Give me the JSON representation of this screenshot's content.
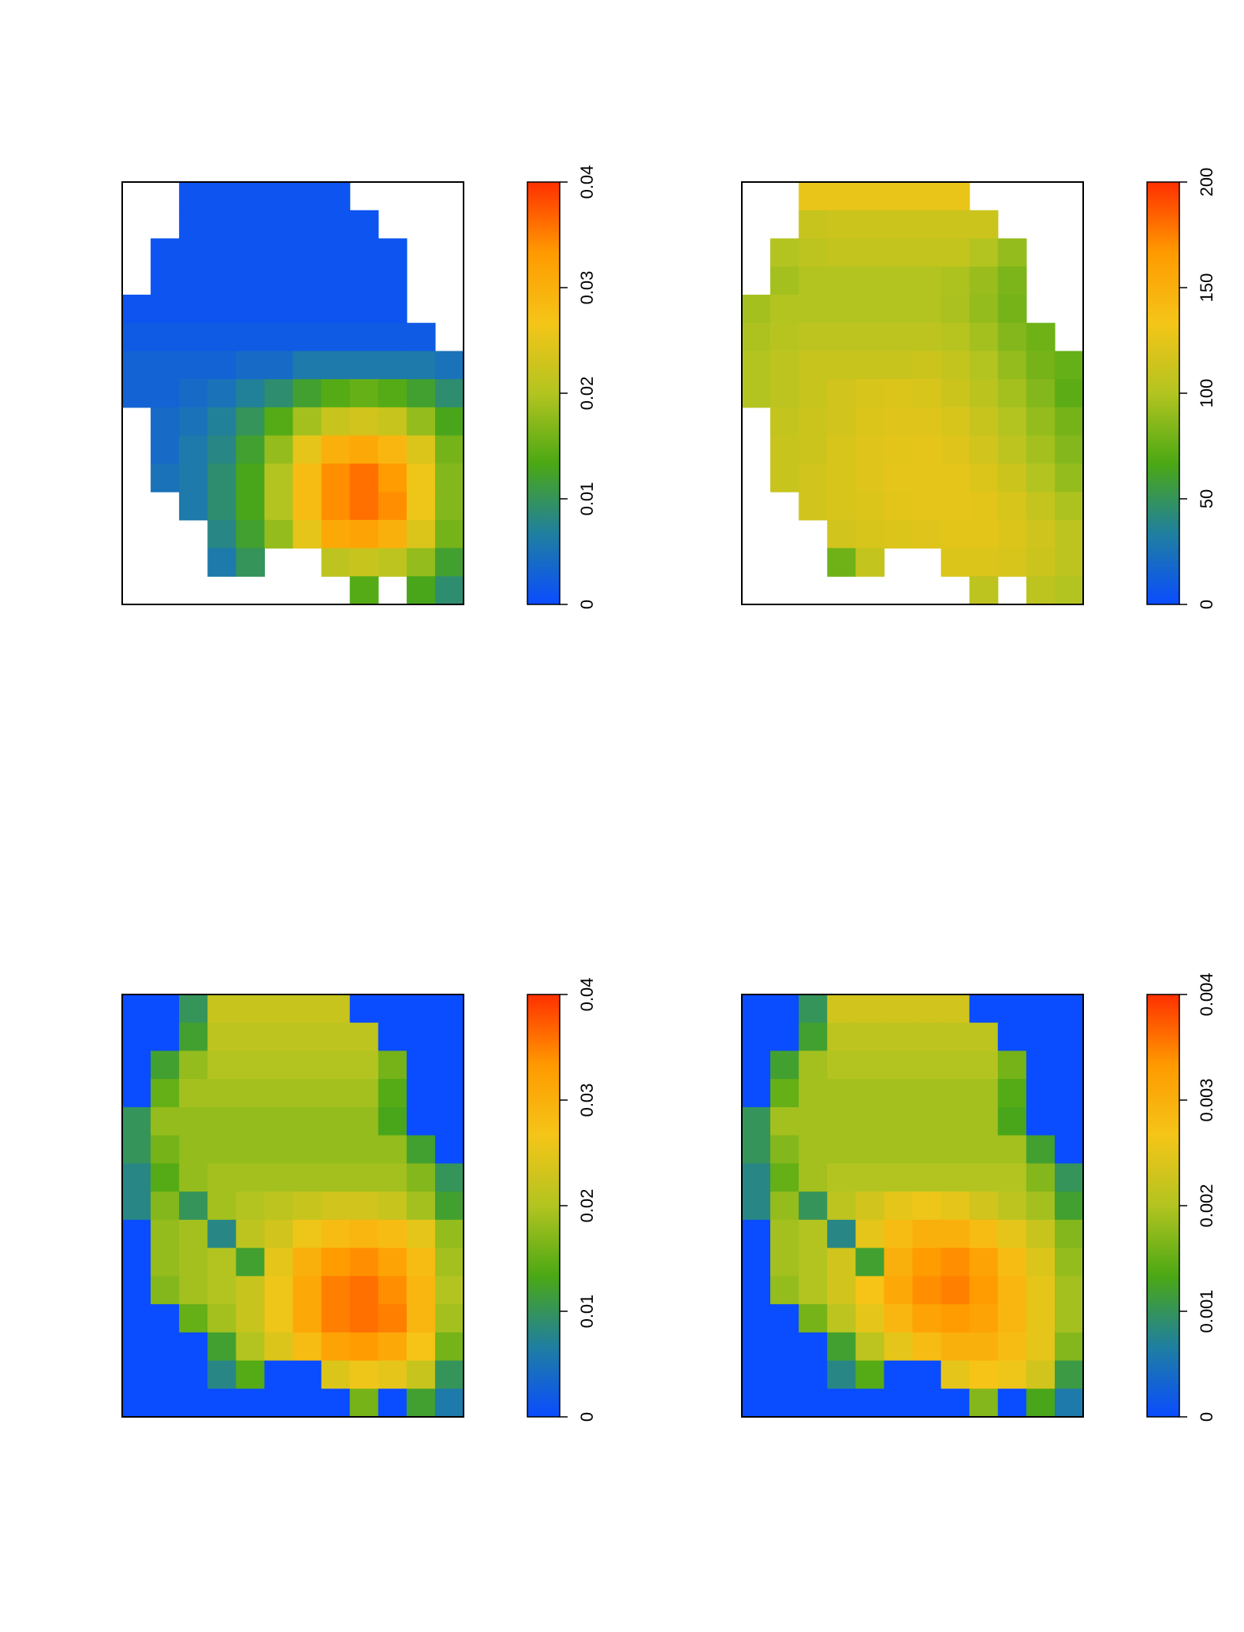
{
  "chart_data": [
    {
      "type": "heatmap",
      "zlim": [
        0,
        0.04
      ],
      "zticks": [
        0,
        0.01,
        0.02,
        0.03,
        0.04
      ],
      "colors": [
        "#0a4cff",
        "#1f7fa0",
        "#4ba814",
        "#b3c420",
        "#f5c518",
        "#ff9a00",
        "#ff3000"
      ],
      "z": [
        [
          null,
          null,
          0.001,
          0.001,
          0.001,
          0.001,
          0.001,
          0.001,
          null,
          null,
          null,
          null
        ],
        [
          null,
          null,
          0.001,
          0.001,
          0.001,
          0.001,
          0.001,
          0.001,
          0.001,
          null,
          null,
          null
        ],
        [
          null,
          0.001,
          0.001,
          0.001,
          0.001,
          0.001,
          0.001,
          0.001,
          0.001,
          0.001,
          null,
          null
        ],
        [
          null,
          0.001,
          0.001,
          0.001,
          0.001,
          0.001,
          0.001,
          0.001,
          0.001,
          0.001,
          null,
          null
        ],
        [
          0.001,
          0.001,
          0.001,
          0.001,
          0.001,
          0.001,
          0.001,
          0.001,
          0.001,
          0.001,
          null,
          null
        ],
        [
          0.002,
          0.002,
          0.002,
          0.002,
          0.002,
          0.002,
          0.002,
          0.002,
          0.002,
          0.002,
          0.002,
          null
        ],
        [
          0.003,
          0.003,
          0.003,
          0.003,
          0.004,
          0.004,
          0.006,
          0.006,
          0.006,
          0.006,
          0.006,
          0.005
        ],
        [
          0.003,
          0.003,
          0.004,
          0.005,
          0.007,
          0.009,
          0.012,
          0.014,
          0.015,
          0.014,
          0.012,
          0.009
        ],
        [
          null,
          0.004,
          0.005,
          0.007,
          0.01,
          0.014,
          0.019,
          0.022,
          0.023,
          0.022,
          0.018,
          0.013
        ],
        [
          null,
          0.004,
          0.006,
          0.008,
          0.012,
          0.018,
          0.025,
          0.03,
          0.031,
          0.029,
          0.024,
          0.016
        ],
        [
          null,
          0.005,
          0.006,
          0.009,
          0.013,
          0.02,
          0.028,
          0.034,
          0.036,
          0.033,
          0.026,
          0.017
        ],
        [
          null,
          null,
          0.006,
          0.009,
          0.013,
          0.02,
          0.028,
          0.034,
          0.036,
          0.034,
          0.026,
          0.017
        ],
        [
          null,
          null,
          null,
          0.008,
          0.012,
          0.018,
          0.025,
          0.031,
          0.032,
          0.03,
          0.024,
          0.016
        ],
        [
          null,
          null,
          null,
          0.006,
          0.01,
          null,
          null,
          0.021,
          0.022,
          0.021,
          0.018,
          0.012
        ],
        [
          null,
          null,
          null,
          null,
          null,
          null,
          null,
          null,
          0.014,
          null,
          0.013,
          0.009
        ]
      ]
    },
    {
      "type": "heatmap",
      "zlim": [
        0,
        200
      ],
      "zticks": [
        0,
        50,
        100,
        150,
        200
      ],
      "colors": [
        "#0a4cff",
        "#1f7fa0",
        "#4ba814",
        "#b3c420",
        "#f5c518",
        "#ff9a00",
        "#ff3000"
      ],
      "z": [
        [
          null,
          null,
          128,
          128,
          128,
          128,
          128,
          128,
          null,
          null,
          null,
          null
        ],
        [
          null,
          null,
          110,
          112,
          112,
          112,
          112,
          112,
          112,
          null,
          null,
          null
        ],
        [
          null,
          100,
          105,
          108,
          108,
          108,
          108,
          108,
          100,
          90,
          null,
          null
        ],
        [
          null,
          95,
          100,
          100,
          100,
          100,
          100,
          98,
          92,
          82,
          null,
          null
        ],
        [
          95,
          100,
          100,
          100,
          100,
          100,
          100,
          97,
          90,
          80,
          null,
          null
        ],
        [
          98,
          102,
          105,
          105,
          105,
          105,
          105,
          102,
          95,
          85,
          78,
          null
        ],
        [
          100,
          105,
          110,
          110,
          110,
          110,
          112,
          108,
          100,
          90,
          80,
          75
        ],
        [
          100,
          105,
          110,
          115,
          118,
          120,
          118,
          112,
          104,
          95,
          85,
          72
        ],
        [
          null,
          108,
          112,
          115,
          120,
          122,
          122,
          118,
          110,
          100,
          90,
          80
        ],
        [
          null,
          110,
          112,
          118,
          122,
          124,
          125,
          122,
          115,
          105,
          95,
          85
        ],
        [
          null,
          110,
          115,
          118,
          122,
          125,
          126,
          125,
          120,
          112,
          100,
          90
        ],
        [
          null,
          null,
          115,
          118,
          120,
          124,
          126,
          126,
          124,
          118,
          108,
          98
        ],
        [
          null,
          null,
          null,
          115,
          118,
          120,
          122,
          124,
          124,
          120,
          114,
          105
        ],
        [
          null,
          null,
          null,
          78,
          108,
          null,
          null,
          120,
          120,
          118,
          112,
          105
        ],
        [
          null,
          null,
          null,
          null,
          null,
          null,
          null,
          null,
          105,
          null,
          105,
          100
        ]
      ]
    },
    {
      "type": "heatmap",
      "zlim": [
        0,
        0.04
      ],
      "zticks": [
        0,
        0.01,
        0.02,
        0.03,
        0.04
      ],
      "colors": [
        "#0a4cff",
        "#1f7fa0",
        "#4ba814",
        "#b3c420",
        "#f5c518",
        "#ff9a00",
        "#ff3000"
      ],
      "z": [
        [
          0,
          0,
          0.01,
          0.022,
          0.022,
          0.022,
          0.022,
          0.022,
          0,
          0,
          0,
          0
        ],
        [
          0,
          0,
          0.012,
          0.021,
          0.021,
          0.021,
          0.021,
          0.021,
          0.021,
          0,
          0,
          0
        ],
        [
          0,
          0.012,
          0.018,
          0.02,
          0.02,
          0.02,
          0.02,
          0.02,
          0.02,
          0.016,
          0,
          0
        ],
        [
          0,
          0.015,
          0.019,
          0.019,
          0.019,
          0.019,
          0.019,
          0.019,
          0.019,
          0.014,
          0,
          0
        ],
        [
          0.01,
          0.018,
          0.018,
          0.018,
          0.018,
          0.018,
          0.018,
          0.018,
          0.018,
          0.013,
          0,
          0
        ],
        [
          0.01,
          0.016,
          0.018,
          0.018,
          0.018,
          0.018,
          0.018,
          0.018,
          0.018,
          0.018,
          0.012,
          0
        ],
        [
          0.008,
          0.014,
          0.018,
          0.019,
          0.019,
          0.019,
          0.019,
          0.019,
          0.019,
          0.019,
          0.017,
          0.01
        ],
        [
          0.008,
          0.017,
          0.01,
          0.019,
          0.02,
          0.021,
          0.022,
          0.023,
          0.023,
          0.022,
          0.019,
          0.012
        ],
        [
          0,
          0.018,
          0.019,
          0.008,
          0.021,
          0.023,
          0.026,
          0.028,
          0.029,
          0.028,
          0.025,
          0.018
        ],
        [
          0,
          0.018,
          0.019,
          0.02,
          0.012,
          0.025,
          0.03,
          0.033,
          0.034,
          0.032,
          0.028,
          0.019
        ],
        [
          0,
          0.017,
          0.019,
          0.02,
          0.022,
          0.026,
          0.031,
          0.035,
          0.036,
          0.034,
          0.029,
          0.02
        ],
        [
          0,
          0,
          0.015,
          0.019,
          0.022,
          0.026,
          0.031,
          0.035,
          0.036,
          0.035,
          0.029,
          0.019
        ],
        [
          0,
          0,
          0,
          0.012,
          0.02,
          0.024,
          0.028,
          0.032,
          0.033,
          0.031,
          0.027,
          0.016
        ],
        [
          0,
          0,
          0,
          0.008,
          0.014,
          0,
          0,
          0.024,
          0.026,
          0.025,
          0.022,
          0.01
        ],
        [
          0,
          0,
          0,
          0,
          0,
          0,
          0,
          0,
          0.016,
          0,
          0.012,
          0.006
        ]
      ]
    },
    {
      "type": "heatmap",
      "zlim": [
        0,
        0.004
      ],
      "zticks": [
        0,
        0.001,
        0.002,
        0.003,
        0.004
      ],
      "colors": [
        "#0a4cff",
        "#1f7fa0",
        "#4ba814",
        "#b3c420",
        "#f5c518",
        "#ff9a00",
        "#ff3000"
      ],
      "z": [
        [
          0,
          0,
          0.001,
          0.0023,
          0.0023,
          0.0023,
          0.0023,
          0.0023,
          0,
          0,
          0,
          0
        ],
        [
          0,
          0,
          0.0012,
          0.0021,
          0.0021,
          0.0021,
          0.0021,
          0.0021,
          0.0021,
          0,
          0,
          0
        ],
        [
          0,
          0.0012,
          0.0019,
          0.002,
          0.002,
          0.002,
          0.002,
          0.002,
          0.002,
          0.0016,
          0,
          0
        ],
        [
          0,
          0.0015,
          0.0019,
          0.0019,
          0.0019,
          0.0019,
          0.0019,
          0.0019,
          0.0019,
          0.0014,
          0,
          0
        ],
        [
          0.001,
          0.0019,
          0.0019,
          0.0019,
          0.0019,
          0.0019,
          0.0019,
          0.0019,
          0.0019,
          0.0013,
          0,
          0
        ],
        [
          0.001,
          0.0017,
          0.0019,
          0.0019,
          0.0019,
          0.0019,
          0.0019,
          0.0019,
          0.0019,
          0.0019,
          0.0012,
          0
        ],
        [
          0.0008,
          0.0015,
          0.0019,
          0.002,
          0.002,
          0.002,
          0.002,
          0.002,
          0.002,
          0.002,
          0.0017,
          0.001
        ],
        [
          0.0008,
          0.0018,
          0.001,
          0.0021,
          0.0023,
          0.0025,
          0.0026,
          0.0025,
          0.0023,
          0.0021,
          0.0019,
          0.0012
        ],
        [
          0,
          0.0019,
          0.002,
          0.0008,
          0.0025,
          0.0028,
          0.003,
          0.003,
          0.0028,
          0.0025,
          0.0022,
          0.0017
        ],
        [
          0,
          0.0019,
          0.002,
          0.0023,
          0.0012,
          0.003,
          0.0033,
          0.0034,
          0.0032,
          0.0028,
          0.0024,
          0.0018
        ],
        [
          0,
          0.0018,
          0.002,
          0.0023,
          0.0027,
          0.0031,
          0.0034,
          0.0035,
          0.0033,
          0.0029,
          0.0025,
          0.0019
        ],
        [
          0,
          0,
          0.0016,
          0.0021,
          0.0025,
          0.0029,
          0.0032,
          0.0033,
          0.0032,
          0.0029,
          0.0025,
          0.0019
        ],
        [
          0,
          0,
          0,
          0.0012,
          0.0021,
          0.0025,
          0.0028,
          0.003,
          0.003,
          0.0028,
          0.0025,
          0.0017
        ],
        [
          0,
          0,
          0,
          0.0008,
          0.0014,
          0,
          0,
          0.0025,
          0.0027,
          0.0026,
          0.0023,
          0.0011
        ],
        [
          0,
          0,
          0,
          0,
          0,
          0,
          0,
          0,
          0.0017,
          0,
          0.0013,
          0.0006
        ]
      ]
    }
  ]
}
